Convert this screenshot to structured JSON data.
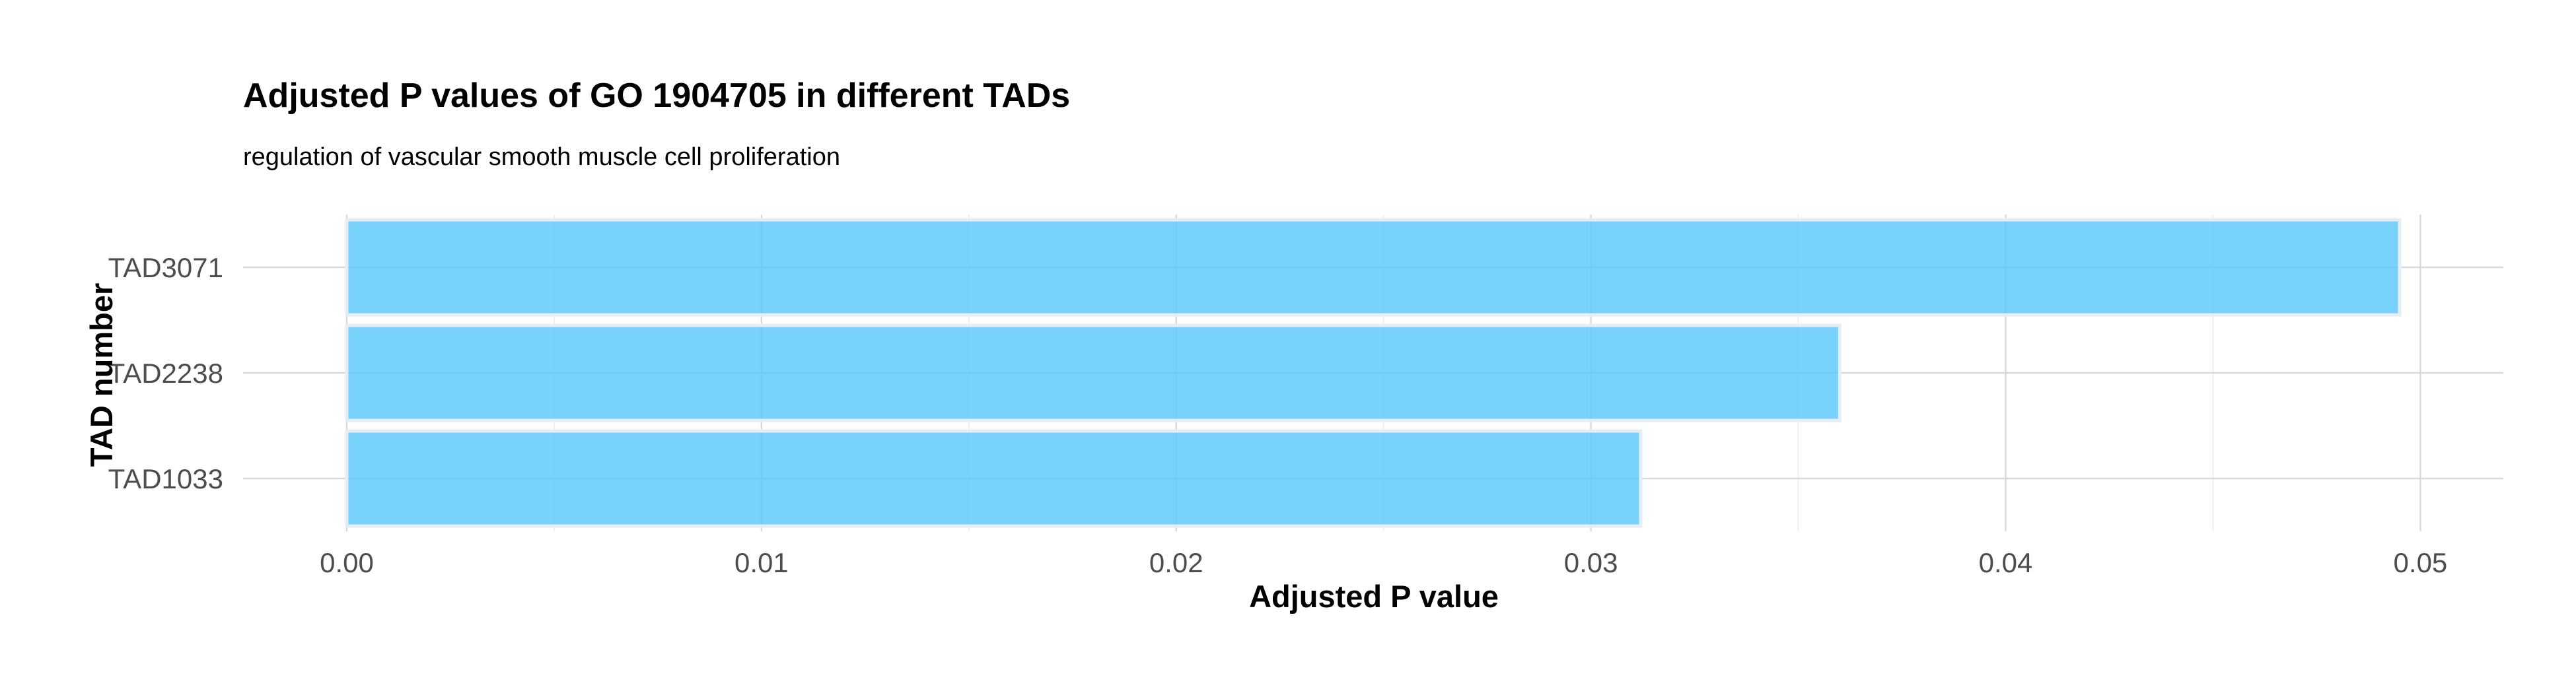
{
  "chart_data": {
    "type": "bar",
    "orientation": "horizontal",
    "title": "Adjusted P values of GO 1904705 in different TADs",
    "subtitle": "regulation of vascular smooth muscle cell proliferation",
    "xlabel": "Adjusted P value",
    "ylabel": "TAD number",
    "categories": [
      "TAD3071",
      "TAD2238",
      "TAD1033"
    ],
    "values": [
      0.0495,
      0.036,
      0.0312
    ],
    "xlim": [
      -0.0025,
      0.052
    ],
    "xticks": [
      0,
      0.01,
      0.02,
      0.03,
      0.04,
      0.05
    ],
    "xtick_labels": [
      "0.00",
      "0.01",
      "0.02",
      "0.03",
      "0.04",
      "0.05"
    ],
    "grid": true,
    "legend": "none",
    "colors": {
      "bar_fill": "#5AC8FA",
      "bar_outline": "#e6eef5",
      "grid": "#d9d9d9"
    }
  }
}
